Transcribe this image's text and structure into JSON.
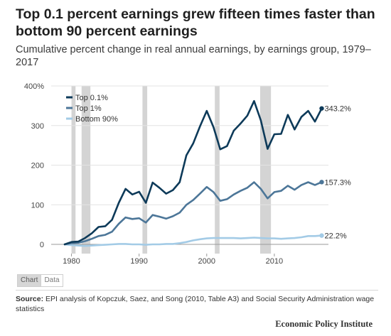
{
  "title": "Top 0.1 percent earnings grew fifteen times faster than bottom 90 percent earnings",
  "subtitle": "Cumulative percent change in real annual earnings, by earnings group, 1979–2017",
  "tabs": {
    "chart_label": "Chart",
    "data_label": "Data"
  },
  "source": {
    "prefix": "Source:",
    "text": "EPI analysis of Kopczuk, Saez, and Song (2010, Table A3) and Social Security Administration wage statistics"
  },
  "brand": "Economic Policy Institute",
  "chart_data": {
    "type": "line",
    "x_tick_labels": [
      "1980",
      "1990",
      "2000",
      "2010"
    ],
    "x_ticks": [
      1980,
      1990,
      2000,
      2010
    ],
    "y_tick_labels": [
      "0",
      "100",
      "200",
      "300",
      "400%"
    ],
    "y_ticks": [
      0,
      100,
      200,
      300,
      400
    ],
    "xlim": [
      1977,
      2018
    ],
    "ylim": [
      -10,
      400
    ],
    "grid": "horizontal",
    "legend_position": "top-left",
    "recession_shading": [
      [
        1980,
        1980.6
      ],
      [
        1981.5,
        1982.8
      ],
      [
        1990.5,
        1991.2
      ],
      [
        2001.2,
        2001.9
      ],
      [
        2007.9,
        2009.5
      ]
    ],
    "x": [
      1979,
      1980,
      1981,
      1982,
      1983,
      1984,
      1985,
      1986,
      1987,
      1988,
      1989,
      1990,
      1991,
      1992,
      1993,
      1994,
      1995,
      1996,
      1997,
      1998,
      1999,
      2000,
      2001,
      2002,
      2003,
      2004,
      2005,
      2006,
      2007,
      2008,
      2009,
      2010,
      2011,
      2012,
      2013,
      2014,
      2015,
      2016,
      2017
    ],
    "series": [
      {
        "name": "Top 0.1%",
        "color": "#0d3a59",
        "end_label": "343.2%",
        "values": [
          0,
          6,
          7,
          16,
          28,
          44,
          46,
          62,
          105,
          140,
          126,
          133,
          105,
          156,
          143,
          128,
          137,
          157,
          225,
          255,
          298,
          337,
          296,
          240,
          248,
          287,
          305,
          325,
          362,
          313,
          241,
          278,
          279,
          327,
          290,
          322,
          337,
          310,
          343.2
        ]
      },
      {
        "name": "Top 1%",
        "color": "#4c7698",
        "end_label": "157.3%",
        "values": [
          0,
          3,
          4,
          8,
          14,
          21,
          24,
          32,
          52,
          68,
          64,
          66,
          55,
          74,
          70,
          65,
          71,
          80,
          100,
          112,
          128,
          145,
          132,
          110,
          114,
          126,
          135,
          143,
          157,
          140,
          116,
          132,
          135,
          148,
          138,
          150,
          157,
          150,
          157.3
        ]
      },
      {
        "name": "Bottom 90%",
        "color": "#a3cbe6",
        "end_label": "22.2%",
        "values": [
          0,
          -2,
          -3,
          -4,
          -3,
          -2,
          -1,
          0,
          1,
          1,
          0,
          0,
          -1,
          0,
          0,
          1,
          1,
          3,
          6,
          10,
          13,
          15,
          16,
          16,
          16,
          16,
          15,
          16,
          17,
          16,
          15,
          15,
          14,
          15,
          16,
          18,
          21,
          21,
          22.2
        ]
      }
    ]
  }
}
